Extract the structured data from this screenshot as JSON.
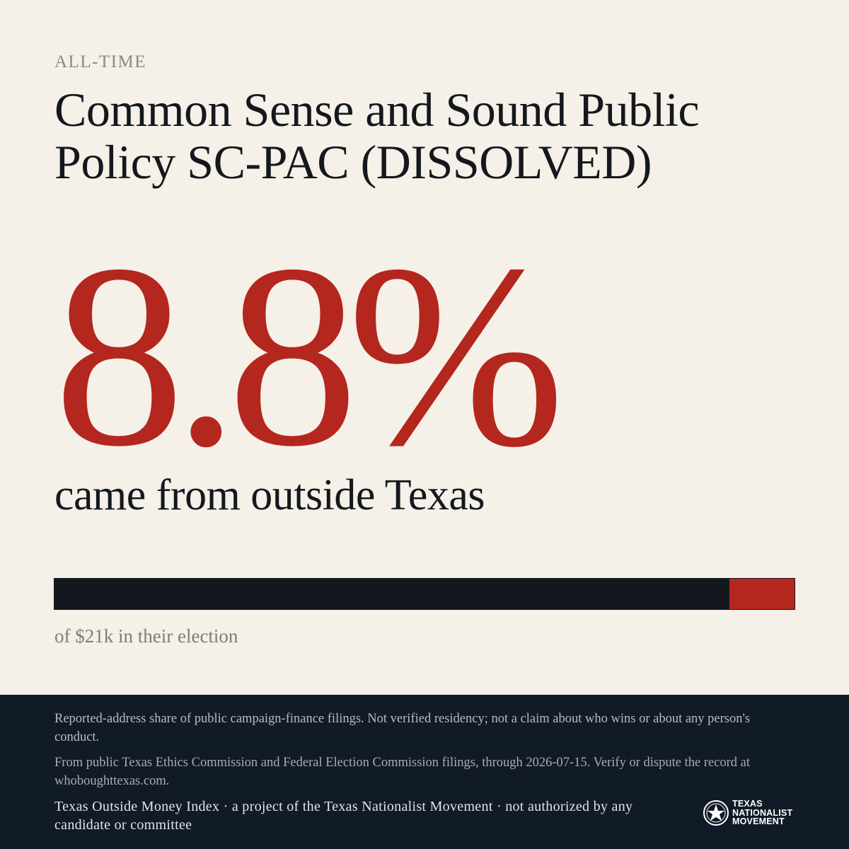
{
  "header": {
    "kicker": "ALL-TIME",
    "title": "Common Sense and Sound Public Policy SC-PAC (DISSOLVED)"
  },
  "stat": {
    "value": "8.8%",
    "label": "came from outside Texas",
    "share_outside": 0.088,
    "caption": "of $21k in their election"
  },
  "colors": {
    "accent": "#b3271e",
    "ink": "#14181e",
    "background": "#f5f0e8",
    "footer": "#111a27"
  },
  "footer": {
    "disclaimer": "Reported-address share of public campaign-finance filings. Not verified residency; not a claim about who wins or about any person's conduct.",
    "source": "From public Texas Ethics Commission and Federal Election Commission filings, through 2026-07-15. Verify or dispute the record at whoboughttexas.com.",
    "credit": "Texas Outside Money Index · a project of the Texas Nationalist Movement · not authorized by any candidate or committee",
    "logo": {
      "icon": "star-seal-icon",
      "line1": "TEXAS",
      "line2": "NATIONALIST",
      "line3": "MOVEMENT"
    }
  }
}
